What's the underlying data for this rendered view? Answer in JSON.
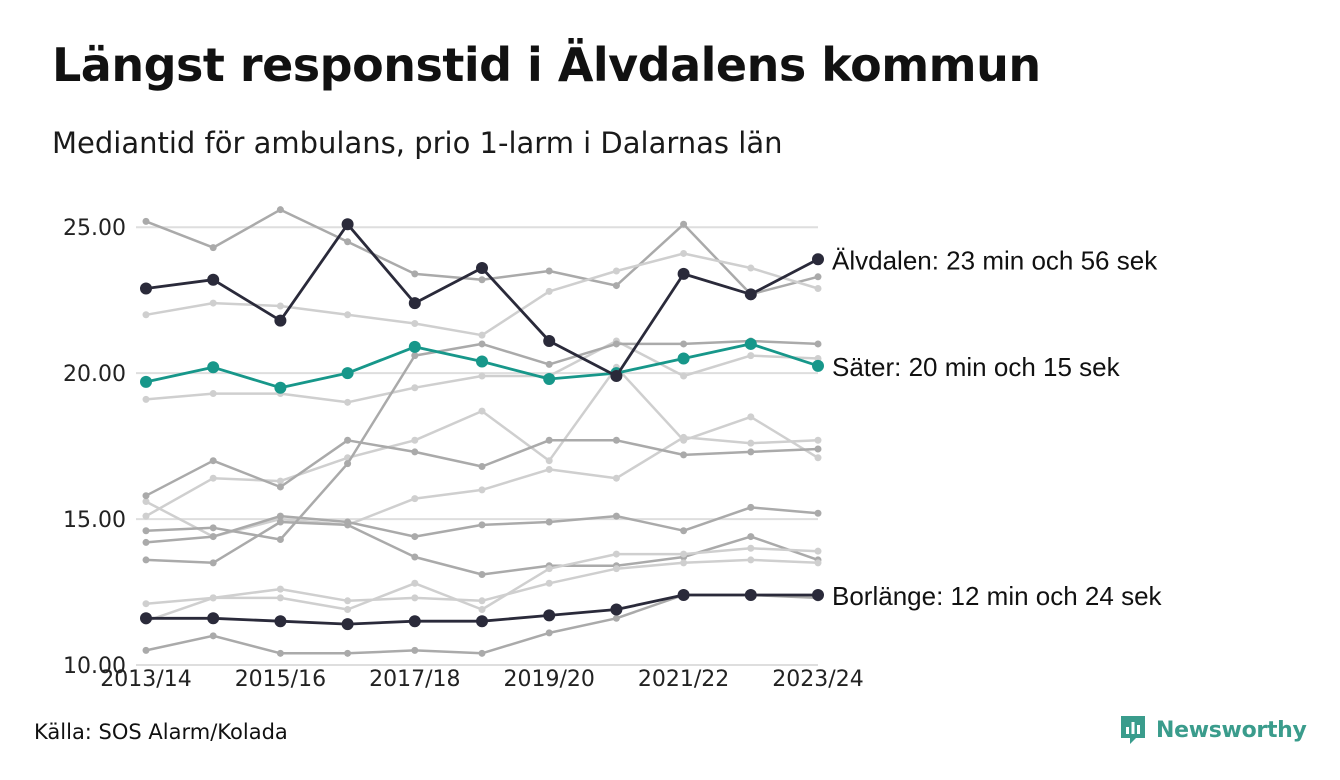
{
  "title": "Längst responstid i Älvdalens kommun",
  "subtitle": "Mediantid för ambulans, prio 1-larm i Dalarnas län",
  "source": "Källa: SOS Alarm/Kolada",
  "brand": "Newsworthy",
  "colors": {
    "highlight_dark": "#2a2a3a",
    "highlight_teal": "#17978a",
    "context_light": "#cfcfcf",
    "context_mid": "#aaaaaa",
    "grid": "#dedede",
    "brand": "#3a9c8c"
  },
  "chart_data": {
    "type": "line",
    "x": [
      "2013/14",
      "2014/15",
      "2015/16",
      "2016/17",
      "2017/18",
      "2018/19",
      "2019/20",
      "2020/21",
      "2021/22",
      "2022/23",
      "2023/24"
    ],
    "x_tick_labels": [
      "2013/14",
      "2015/16",
      "2017/18",
      "2019/20",
      "2021/22",
      "2023/24"
    ],
    "ylim": [
      10,
      26
    ],
    "y_ticks": [
      10,
      15,
      20,
      25
    ],
    "y_tick_labels": [
      "10.00",
      "15.00",
      "20.00",
      "25.00"
    ],
    "grid": true,
    "series": [
      {
        "values": [
          25.2,
          24.3,
          25.6,
          24.5,
          23.4,
          23.2,
          23.5,
          23.0,
          25.1,
          22.7,
          23.3
        ],
        "style": "mid"
      },
      {
        "values": [
          22.0,
          22.4,
          22.3,
          22.0,
          21.7,
          21.3,
          22.8,
          23.5,
          24.1,
          23.6,
          22.9
        ],
        "style": "light"
      },
      {
        "values": [
          19.1,
          19.3,
          19.3,
          19.0,
          19.5,
          19.9,
          19.9,
          21.1,
          19.9,
          20.6,
          20.5
        ],
        "style": "light"
      },
      {
        "values": [
          15.1,
          16.4,
          16.3,
          17.1,
          17.7,
          18.7,
          17.0,
          20.2,
          17.7,
          18.5,
          17.1
        ],
        "style": "light"
      },
      {
        "values": [
          15.6,
          14.4,
          15.0,
          14.8,
          15.7,
          16.0,
          16.7,
          16.4,
          17.8,
          17.6,
          17.7
        ],
        "style": "light"
      },
      {
        "values": [
          15.8,
          17.0,
          16.1,
          17.7,
          17.3,
          16.8,
          17.7,
          17.7,
          17.2,
          17.3,
          17.4
        ],
        "style": "mid"
      },
      {
        "values": [
          14.6,
          14.7,
          14.3,
          16.9,
          20.6,
          21.0,
          20.3,
          21.0,
          21.0,
          21.1,
          21.0
        ],
        "style": "mid"
      },
      {
        "values": [
          14.2,
          14.4,
          15.1,
          14.9,
          14.4,
          14.8,
          14.9,
          15.1,
          14.6,
          15.4,
          15.2
        ],
        "style": "mid"
      },
      {
        "values": [
          13.6,
          13.5,
          14.9,
          14.8,
          13.7,
          13.1,
          13.4,
          13.4,
          13.7,
          14.4,
          13.6
        ],
        "style": "mid"
      },
      {
        "values": [
          11.5,
          12.3,
          12.3,
          11.9,
          12.8,
          11.9,
          13.3,
          13.8,
          13.8,
          14.0,
          13.9
        ],
        "style": "light"
      },
      {
        "values": [
          12.1,
          12.3,
          12.6,
          12.2,
          12.3,
          12.2,
          12.8,
          13.3,
          13.5,
          13.6,
          13.5
        ],
        "style": "light"
      },
      {
        "values": [
          10.5,
          11.0,
          10.4,
          10.4,
          10.5,
          10.4,
          11.1,
          11.6,
          12.4,
          12.4,
          12.3
        ],
        "style": "mid"
      },
      {
        "name": "Borlänge",
        "label": "Borlänge: 12 min och 24 sek",
        "values": [
          11.6,
          11.6,
          11.5,
          11.4,
          11.5,
          11.5,
          11.7,
          11.9,
          12.4,
          12.4,
          12.4
        ],
        "style": "dark"
      },
      {
        "name": "Säter",
        "label": "Säter: 20 min och 15 sek",
        "values": [
          19.7,
          20.2,
          19.5,
          20.0,
          20.9,
          20.4,
          19.8,
          20.0,
          20.5,
          21.0,
          20.25
        ],
        "style": "teal"
      },
      {
        "name": "Älvdalen",
        "label": "Älvdalen: 23 min och 56 sek",
        "values": [
          22.9,
          23.2,
          21.8,
          25.1,
          22.4,
          23.6,
          21.1,
          19.9,
          23.4,
          22.7,
          23.9
        ],
        "style": "dark"
      }
    ]
  }
}
